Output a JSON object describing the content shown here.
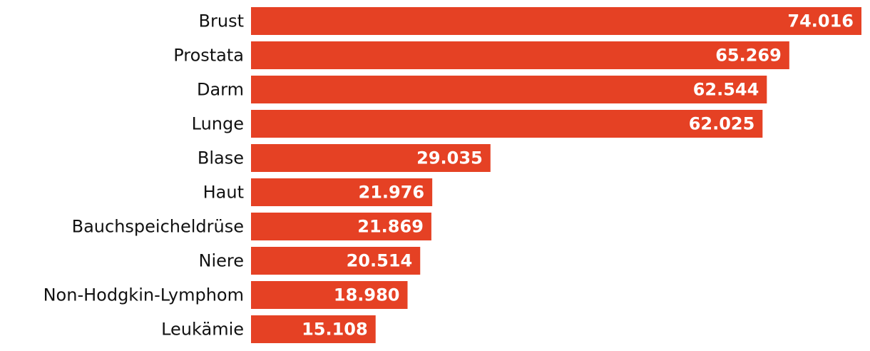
{
  "chart_data": {
    "type": "bar",
    "orientation": "horizontal",
    "categories": [
      "Brust",
      "Prostata",
      "Darm",
      "Lunge",
      "Blase",
      "Haut",
      "Bauchspeicheldrüse",
      "Niere",
      "Non-Hodgkin-Lymphom",
      "Leukämie"
    ],
    "values": [
      74016,
      65269,
      62544,
      62025,
      29035,
      21976,
      21869,
      20514,
      18980,
      15108
    ],
    "value_labels": [
      "74.016",
      "65.269",
      "62.544",
      "62.025",
      "29.035",
      "21.976",
      "21.869",
      "20.514",
      "18.980",
      "15.108"
    ],
    "color": "#e54124"
  }
}
